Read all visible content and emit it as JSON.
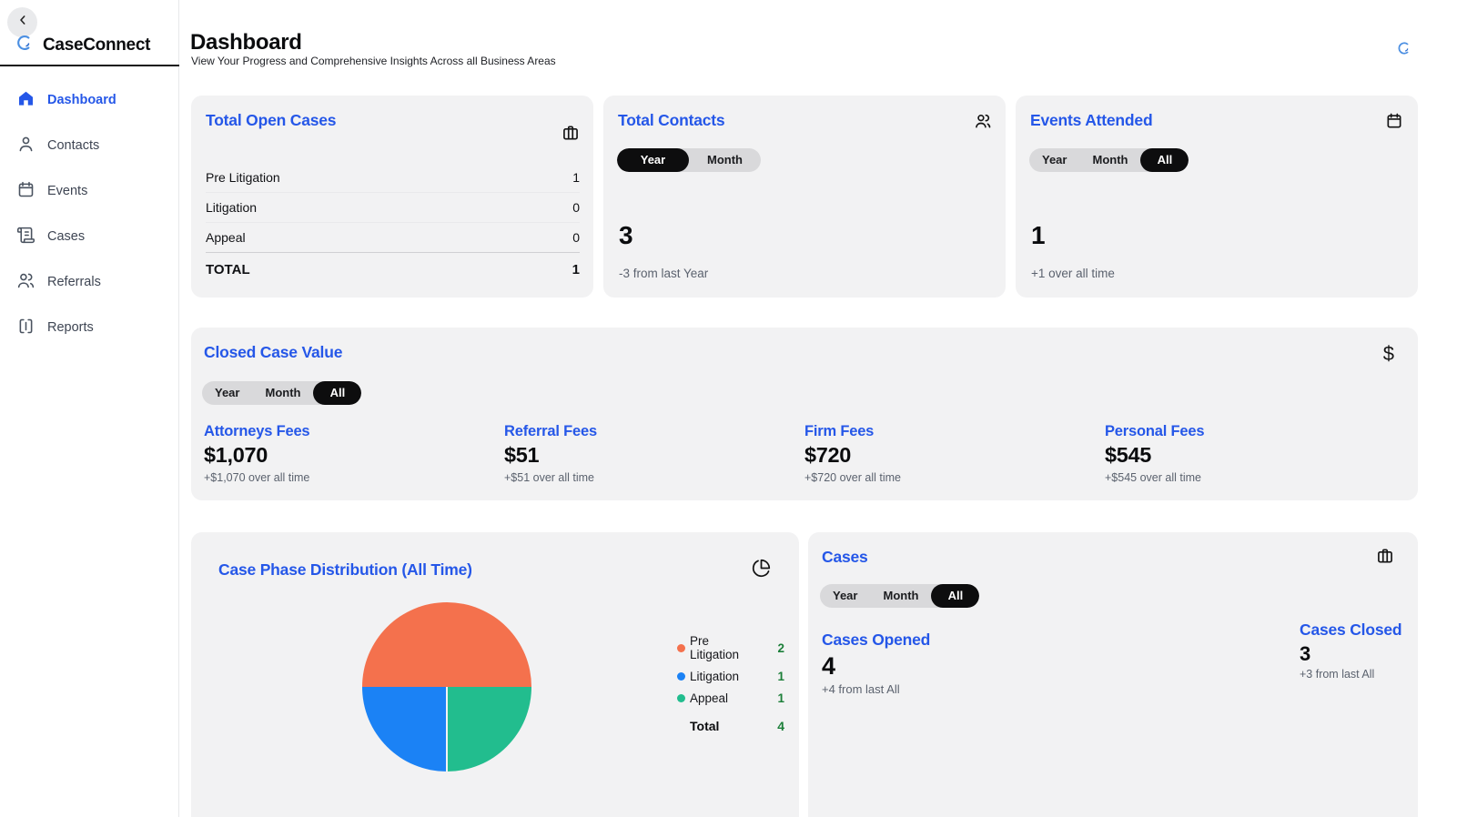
{
  "brand": {
    "name": "CaseConnect"
  },
  "header": {
    "title": "Dashboard",
    "subtitle": "View Your Progress and Comprehensive Insights Across all Business Areas"
  },
  "sidebar": {
    "items": [
      {
        "label": "Dashboard",
        "icon": "home",
        "active": true
      },
      {
        "label": "Contacts",
        "icon": "user",
        "active": false
      },
      {
        "label": "Events",
        "icon": "calendar",
        "active": false
      },
      {
        "label": "Cases",
        "icon": "scroll",
        "active": false
      },
      {
        "label": "Referrals",
        "icon": "users",
        "active": false
      },
      {
        "label": "Reports",
        "icon": "reports",
        "active": false
      }
    ]
  },
  "cards": {
    "total_open_cases": {
      "title": "Total Open Cases",
      "rows": [
        {
          "label": "Pre Litigation",
          "value": "1"
        },
        {
          "label": "Litigation",
          "value": "0"
        },
        {
          "label": "Appeal",
          "value": "0"
        }
      ],
      "total": {
        "label": "TOTAL",
        "value": "1"
      }
    },
    "total_contacts": {
      "title": "Total Contacts",
      "toggle": {
        "options": [
          "Year",
          "Month"
        ],
        "selected": "Year"
      },
      "value": "3",
      "subtitle": "-3 from last Year"
    },
    "events_attended": {
      "title": "Events Attended",
      "toggle": {
        "options": [
          "Year",
          "Month",
          "All"
        ],
        "selected": "All"
      },
      "value": "1",
      "subtitle": "+1 over all time"
    },
    "closed_case_value": {
      "title": "Closed Case Value",
      "toggle": {
        "options": [
          "Year",
          "Month",
          "All"
        ],
        "selected": "All"
      },
      "fees": [
        {
          "name": "Attorneys Fees",
          "value": "$1,070",
          "subtitle": "+$1,070 over all time"
        },
        {
          "name": "Referral Fees",
          "value": "$51",
          "subtitle": "+$51 over all time"
        },
        {
          "name": "Firm Fees",
          "value": "$720",
          "subtitle": "+$720 over all time"
        },
        {
          "name": "Personal Fees",
          "value": "$545",
          "subtitle": "+$545 over all time"
        }
      ]
    },
    "case_phase": {
      "title": "Case Phase Distribution (All Time)",
      "chart_data": {
        "type": "pie",
        "labels": [
          "Pre Litigation",
          "Litigation",
          "Appeal"
        ],
        "values": [
          2,
          1,
          1
        ],
        "colors": [
          "#f4714d",
          "#1b82f5",
          "#22bd8e"
        ],
        "total_label": "Total",
        "total": 4,
        "legend_position": "right"
      }
    },
    "cases": {
      "title": "Cases",
      "toggle": {
        "options": [
          "Year",
          "Month",
          "All"
        ],
        "selected": "All"
      },
      "opened": {
        "title": "Cases Opened",
        "value": "4",
        "subtitle": "+4 from last All"
      },
      "closed": {
        "title": "Cases Closed",
        "value": "3",
        "subtitle": "+3 from last All"
      }
    }
  },
  "colors": {
    "accent": "#2557e8",
    "legend_value": "#1c7f39",
    "card_bg": "#f2f2f3"
  }
}
